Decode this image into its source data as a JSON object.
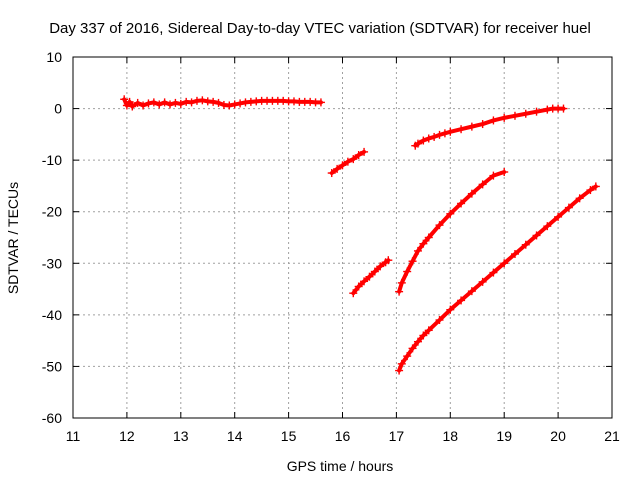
{
  "chart_data": {
    "type": "scatter",
    "title": "Day 337 of 2016, Sidereal Day-to-day VTEC variation (SDTVAR) for receiver huel",
    "xlabel": "GPS time / hours",
    "ylabel": "SDTVAR / TECUs",
    "xlim": [
      11,
      21
    ],
    "ylim": [
      -60,
      10
    ],
    "xticks": [
      "11",
      "12",
      "13",
      "14",
      "15",
      "16",
      "17",
      "18",
      "19",
      "20",
      "21"
    ],
    "yticks": [
      "10",
      "0",
      "-10",
      "-20",
      "-30",
      "-40",
      "-50",
      "-60"
    ],
    "grid": true,
    "color": "#ff0000",
    "marker": "plus",
    "series": [
      {
        "x": [
          11.95,
          12.0,
          12.05,
          12.1,
          12.2,
          12.3,
          12.4,
          12.5,
          12.6,
          12.7,
          12.8,
          12.9,
          13.0,
          13.1,
          13.2,
          13.3,
          13.4,
          13.5,
          13.6,
          13.7,
          13.8,
          13.9,
          14.0,
          14.1,
          14.2,
          14.3,
          14.4,
          14.5,
          14.6,
          14.7,
          14.8,
          14.9,
          15.0,
          15.1,
          15.2,
          15.3,
          15.4,
          15.5,
          15.6
        ],
        "y": [
          1.8,
          0.6,
          1.3,
          0.4,
          1.1,
          0.6,
          1.0,
          1.2,
          0.8,
          1.2,
          0.8,
          1.1,
          0.9,
          1.3,
          1.2,
          1.5,
          1.6,
          1.4,
          1.3,
          1.1,
          0.7,
          0.6,
          0.8,
          1.0,
          1.2,
          1.3,
          1.4,
          1.5,
          1.5,
          1.5,
          1.5,
          1.5,
          1.4,
          1.4,
          1.3,
          1.3,
          1.3,
          1.2,
          1.2
        ]
      },
      {
        "x": [
          15.8,
          15.9,
          16.0,
          16.1,
          16.2,
          16.3,
          16.4
        ],
        "y": [
          -12.5,
          -11.7,
          -11.0,
          -10.3,
          -9.8,
          -9.0,
          -8.4
        ]
      },
      {
        "x": [
          16.2,
          16.3,
          16.4,
          16.5,
          16.6,
          16.7,
          16.8,
          16.85
        ],
        "y": [
          -35.8,
          -34.5,
          -33.5,
          -32.6,
          -31.6,
          -30.6,
          -29.8,
          -29.4
        ]
      },
      {
        "x": [
          17.05,
          17.1,
          17.2,
          17.3,
          17.4,
          17.5,
          17.6,
          17.8,
          18.0,
          18.2,
          18.4,
          18.6,
          18.8,
          19.0
        ],
        "y": [
          -35.5,
          -33.8,
          -31.6,
          -29.6,
          -27.6,
          -26.2,
          -25.0,
          -22.6,
          -20.4,
          -18.4,
          -16.5,
          -14.7,
          -13.0,
          -12.3
        ]
      },
      {
        "x": [
          17.05,
          17.1,
          17.2,
          17.3,
          17.4,
          17.5,
          17.6,
          17.8,
          18.0,
          18.2,
          18.4,
          18.6,
          18.8,
          19.0,
          19.2,
          19.4,
          19.6,
          19.8,
          20.0,
          20.2,
          20.4,
          20.6,
          20.7
        ],
        "y": [
          -50.8,
          -49.5,
          -48.0,
          -46.5,
          -45.2,
          -44.0,
          -43.0,
          -41.0,
          -39.0,
          -37.2,
          -35.4,
          -33.6,
          -31.8,
          -30.0,
          -28.2,
          -26.4,
          -24.6,
          -22.8,
          -21.0,
          -19.2,
          -17.4,
          -15.8,
          -15.1
        ]
      },
      {
        "x": [
          17.35,
          17.4,
          17.5,
          17.6,
          17.7,
          17.8,
          17.9,
          18.0,
          18.2,
          18.4,
          18.6,
          18.8,
          19.0,
          19.2,
          19.4,
          19.6,
          19.8,
          19.9,
          20.0,
          20.1
        ],
        "y": [
          -7.2,
          -6.8,
          -6.2,
          -5.8,
          -5.5,
          -5.1,
          -4.8,
          -4.5,
          -4.0,
          -3.5,
          -3.0,
          -2.3,
          -1.8,
          -1.4,
          -1.0,
          -0.6,
          -0.2,
          0.0,
          0.0,
          0.0
        ]
      }
    ]
  }
}
